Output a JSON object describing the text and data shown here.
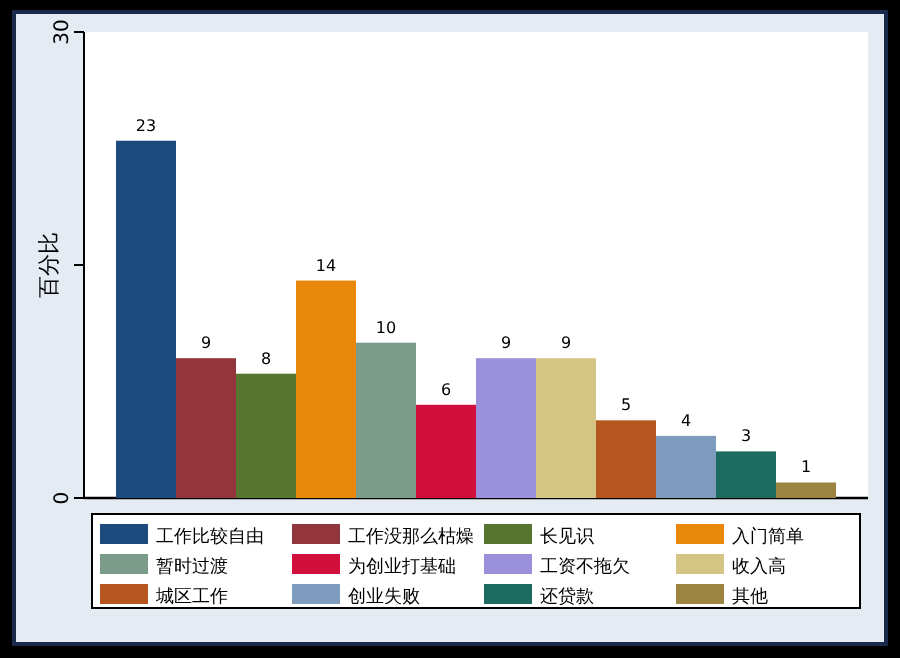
{
  "chart_data": {
    "type": "bar",
    "ylabel": "百分比",
    "categories": [
      null
    ],
    "series": [
      {
        "name": "工作比较自由",
        "color": "#1b4a7c",
        "values": [
          23
        ]
      },
      {
        "name": "工作没那么枯燥",
        "color": "#92363c",
        "values": [
          9
        ]
      },
      {
        "name": "长见识",
        "color": "#56762f",
        "values": [
          8
        ]
      },
      {
        "name": "入门简单",
        "color": "#e8870c",
        "values": [
          14
        ]
      },
      {
        "name": "暂时过渡",
        "color": "#7b9c8b",
        "values": [
          10
        ]
      },
      {
        "name": "为创业打基础",
        "color": "#d0103a",
        "values": [
          6
        ]
      },
      {
        "name": "工资不拖欠",
        "color": "#9b90dc",
        "values": [
          9
        ]
      },
      {
        "name": "收入高",
        "color": "#d4c585",
        "values": [
          9
        ]
      },
      {
        "name": "城区工作",
        "color": "#b5561f",
        "values": [
          5
        ]
      },
      {
        "name": "创业失败",
        "color": "#7f9cbe",
        "values": [
          4
        ]
      },
      {
        "name": "还贷款",
        "color": "#1b6b5f",
        "values": [
          3
        ]
      },
      {
        "name": "其他",
        "color": "#9c8541",
        "values": [
          1
        ]
      }
    ],
    "ylim": [
      0,
      30
    ],
    "yticks": [
      0,
      {
        "value": 15,
        "label": null
      },
      30
    ],
    "data_labels": true,
    "legend": "bottom",
    "tick_labels": "y"
  }
}
